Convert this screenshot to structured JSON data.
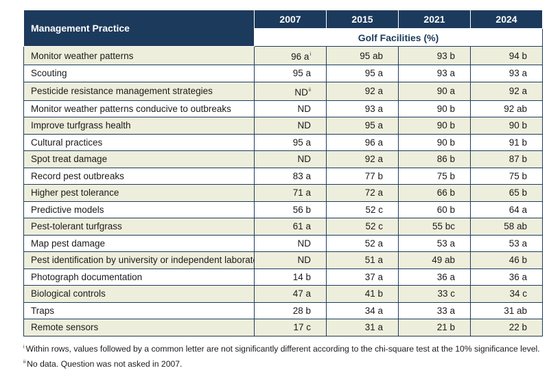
{
  "table": {
    "header_practice": "Management Practice",
    "years": [
      "2007",
      "2015",
      "2021",
      "2024"
    ],
    "subheader": "Golf Facilities (%)",
    "rows": [
      {
        "label": "Monitor weather patterns",
        "v2007": "96 a",
        "v2007_sup": "i",
        "v2015": "95 ab",
        "v2021": "93 b",
        "v2024": "94 b"
      },
      {
        "label": "Scouting",
        "v2007": "95 a",
        "v2007_sup": "",
        "v2015": "95 a",
        "v2021": "93 a",
        "v2024": "93 a"
      },
      {
        "label": "Pesticide resistance management strategies",
        "v2007": "ND",
        "v2007_sup": "ii",
        "v2015": "92 a",
        "v2021": "90 a",
        "v2024": "92 a"
      },
      {
        "label": "Monitor weather patterns conducive to outbreaks",
        "v2007": "ND",
        "v2007_sup": "",
        "v2015": "93 a",
        "v2021": "90 b",
        "v2024": "92 ab"
      },
      {
        "label": "Improve turfgrass health",
        "v2007": "ND",
        "v2007_sup": "",
        "v2015": "95 a",
        "v2021": "90 b",
        "v2024": "90 b"
      },
      {
        "label": "Cultural practices",
        "v2007": "95 a",
        "v2007_sup": "",
        "v2015": "96 a",
        "v2021": "90 b",
        "v2024": "91 b"
      },
      {
        "label": "Spot treat damage",
        "v2007": "ND",
        "v2007_sup": "",
        "v2015": "92 a",
        "v2021": "86 b",
        "v2024": "87 b"
      },
      {
        "label": "Record pest outbreaks",
        "v2007": "83 a",
        "v2007_sup": "",
        "v2015": "77 b",
        "v2021": "75 b",
        "v2024": "75 b"
      },
      {
        "label": "Higher pest tolerance",
        "v2007": "71 a",
        "v2007_sup": "",
        "v2015": "72 a",
        "v2021": "66 b",
        "v2024": "65 b"
      },
      {
        "label": "Predictive models",
        "v2007": "56 b",
        "v2007_sup": "",
        "v2015": "52 c",
        "v2021": "60 b",
        "v2024": "64 a"
      },
      {
        "label": "Pest-tolerant turfgrass",
        "v2007": "61 a",
        "v2007_sup": "",
        "v2015": "52 c",
        "v2021": "55 bc",
        "v2024": "58 ab"
      },
      {
        "label": "Map pest damage",
        "v2007": "ND",
        "v2007_sup": "",
        "v2015": "52 a",
        "v2021": "53 a",
        "v2024": "53 a"
      },
      {
        "label": "Pest identification by university or independent laboratory",
        "v2007": "ND",
        "v2007_sup": "",
        "v2015": "51 a",
        "v2021": "49 ab",
        "v2024": "46 b"
      },
      {
        "label": "Photograph documentation",
        "v2007": "14 b",
        "v2007_sup": "",
        "v2015": "37 a",
        "v2021": "36 a",
        "v2024": "36 a"
      },
      {
        "label": "Biological controls",
        "v2007": "47 a",
        "v2007_sup": "",
        "v2015": "41 b",
        "v2021": "33 c",
        "v2024": "34 c"
      },
      {
        "label": "Traps",
        "v2007": "28 b",
        "v2007_sup": "",
        "v2015": "34 a",
        "v2021": "33 a",
        "v2024": "31 ab"
      },
      {
        "label": "Remote sensors",
        "v2007": "17 c",
        "v2007_sup": "",
        "v2015": "31 a",
        "v2021": "21 b",
        "v2024": "22 b"
      }
    ]
  },
  "footnotes": [
    {
      "mark": "i",
      "text": "Within rows, values followed by a common letter are not significantly different according to the chi-square test at the 10% significance level."
    },
    {
      "mark": "ii",
      "text": "No data. Question was not asked in 2007."
    }
  ],
  "colors": {
    "header_bg": "#1c3a5c",
    "row_alt_bg": "#eeeedc",
    "border": "#1c3a5c"
  }
}
